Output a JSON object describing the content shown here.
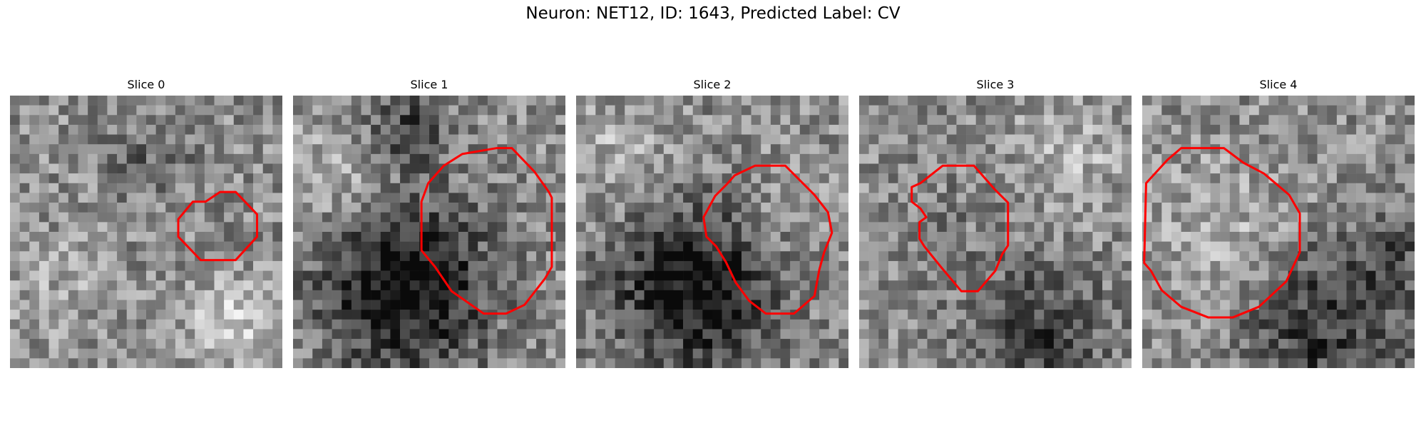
{
  "figure": {
    "title": "Neuron: NET12, ID: 1643, Predicted Label: CV",
    "outline_color": "#ff0000",
    "colormap": "grayscale",
    "grid_size": 28
  },
  "panels": [
    {
      "title": "Slice 0",
      "seed": 11,
      "outline": [
        [
          21.6,
          9.9
        ],
        [
          23.2,
          9.9
        ],
        [
          25.4,
          12.2
        ],
        [
          25.4,
          14.5
        ],
        [
          23.2,
          16.9
        ],
        [
          19.6,
          16.9
        ],
        [
          17.3,
          14.5
        ],
        [
          17.3,
          12.7
        ],
        [
          18.8,
          10.9
        ],
        [
          20.1,
          10.9
        ]
      ],
      "blobs": [
        {
          "cx": 4,
          "cy": 19,
          "r": 4,
          "d": 0.1
        },
        {
          "cx": 22,
          "cy": 23,
          "r": 3,
          "d": 0.25
        },
        {
          "cx": 14,
          "cy": 6,
          "r": 3,
          "d": -0.15
        }
      ]
    },
    {
      "title": "Slice 1",
      "seed": 23,
      "outline": [
        [
          20.9,
          5.4
        ],
        [
          22.5,
          5.4
        ],
        [
          24.8,
          7.8
        ],
        [
          26.3,
          9.9
        ],
        [
          26.6,
          10.5
        ],
        [
          26.6,
          17.6
        ],
        [
          25.9,
          18.8
        ],
        [
          23.8,
          21.5
        ],
        [
          21.9,
          22.4
        ],
        [
          19.6,
          22.4
        ],
        [
          16.3,
          20.1
        ],
        [
          14.6,
          17.6
        ],
        [
          13.2,
          15.9
        ],
        [
          13.2,
          10.9
        ],
        [
          13.9,
          9.0
        ],
        [
          15.5,
          7.2
        ],
        [
          17.4,
          6.0
        ]
      ],
      "blobs": [
        {
          "cx": 11,
          "cy": 19,
          "r": 6,
          "d": -0.55
        },
        {
          "cx": 11,
          "cy": 3,
          "r": 3,
          "d": -0.3
        },
        {
          "cx": 5,
          "cy": 8,
          "r": 4,
          "d": 0.2
        }
      ]
    },
    {
      "title": "Slice 2",
      "seed": 37,
      "outline": [
        [
          18.4,
          7.2
        ],
        [
          21.5,
          7.2
        ],
        [
          24.5,
          10.2
        ],
        [
          25.9,
          12.0
        ],
        [
          26.3,
          14.1
        ],
        [
          25.5,
          16.1
        ],
        [
          25.0,
          17.9
        ],
        [
          24.5,
          20.6
        ],
        [
          22.4,
          22.4
        ],
        [
          19.5,
          22.4
        ],
        [
          17.8,
          21.1
        ],
        [
          16.4,
          19.2
        ],
        [
          15.4,
          17.1
        ],
        [
          14.4,
          15.5
        ],
        [
          13.4,
          14.5
        ],
        [
          13.1,
          12.5
        ],
        [
          14.3,
          10.3
        ],
        [
          15.5,
          9.1
        ],
        [
          16.3,
          8.2
        ]
      ],
      "blobs": [
        {
          "cx": 12,
          "cy": 19,
          "r": 6,
          "d": -0.55
        },
        {
          "cx": 4,
          "cy": 6,
          "r": 4,
          "d": 0.15
        },
        {
          "cx": 19,
          "cy": 14,
          "r": 5,
          "d": 0.1
        }
      ]
    },
    {
      "title": "Slice 3",
      "seed": 53,
      "outline": [
        [
          8.6,
          7.2
        ],
        [
          11.8,
          7.2
        ],
        [
          13.9,
          9.6
        ],
        [
          15.3,
          11.0
        ],
        [
          15.3,
          15.4
        ],
        [
          14.7,
          16.3
        ],
        [
          14.0,
          18.0
        ],
        [
          12.2,
          20.1
        ],
        [
          10.5,
          20.1
        ],
        [
          8.4,
          17.6
        ],
        [
          6.7,
          15.5
        ],
        [
          6.2,
          14.7
        ],
        [
          6.2,
          13.0
        ],
        [
          6.9,
          12.5
        ],
        [
          6.3,
          11.6
        ],
        [
          5.4,
          10.9
        ],
        [
          5.4,
          9.4
        ],
        [
          6.3,
          9.0
        ]
      ],
      "blobs": [
        {
          "cx": 18,
          "cy": 24,
          "r": 5,
          "d": -0.3
        },
        {
          "cx": 9,
          "cy": 13,
          "r": 5,
          "d": -0.05
        },
        {
          "cx": 21,
          "cy": 6,
          "r": 4,
          "d": 0.15
        }
      ]
    },
    {
      "title": "Slice 4",
      "seed": 71,
      "outline": [
        [
          0.4,
          9.0
        ],
        [
          2.6,
          6.6
        ],
        [
          4.0,
          5.4
        ],
        [
          8.4,
          5.4
        ],
        [
          10.4,
          6.9
        ],
        [
          12.5,
          8.0
        ],
        [
          15.1,
          10.2
        ],
        [
          16.2,
          12.1
        ],
        [
          16.2,
          16.1
        ],
        [
          14.8,
          19.1
        ],
        [
          12.0,
          21.7
        ],
        [
          9.3,
          22.8
        ],
        [
          6.8,
          22.8
        ],
        [
          4.0,
          21.7
        ],
        [
          2.0,
          20.0
        ],
        [
          0.9,
          18.0
        ],
        [
          0.2,
          17.2
        ]
      ],
      "blobs": [
        {
          "cx": 18,
          "cy": 23,
          "r": 6,
          "d": -0.35
        },
        {
          "cx": 8,
          "cy": 14,
          "r": 6,
          "d": 0.15
        },
        {
          "cx": 25,
          "cy": 16,
          "r": 3,
          "d": -0.2
        }
      ]
    }
  ]
}
